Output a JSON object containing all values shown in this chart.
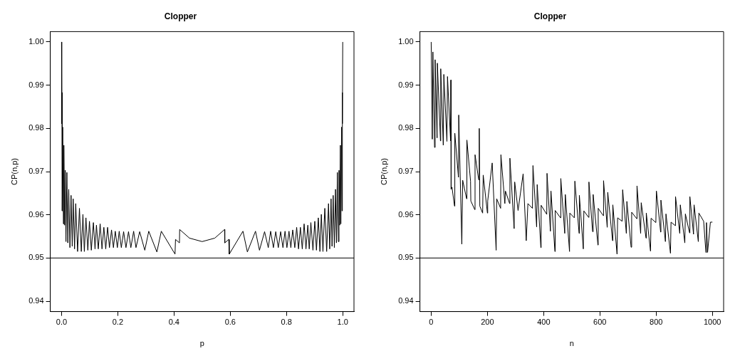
{
  "chart_data": [
    {
      "type": "line",
      "title": "Clopper",
      "xlabel": "p",
      "ylabel": "CP(n,p)",
      "xlim": [
        -0.04,
        1.04
      ],
      "ylim": [
        0.9376,
        1.0024
      ],
      "xticks": [
        {
          "value": 0,
          "label": "0.0"
        },
        {
          "value": 0.2,
          "label": "0.2"
        },
        {
          "value": 0.4,
          "label": "0.4"
        },
        {
          "value": 0.6,
          "label": "0.6"
        },
        {
          "value": 0.8,
          "label": "0.8"
        },
        {
          "value": 1,
          "label": "1.0"
        }
      ],
      "yticks": [
        0.94,
        0.95,
        0.96,
        0.97,
        0.98,
        0.99,
        {
          "value": 1,
          "label": "1.00"
        }
      ],
      "grid": false,
      "legend": false,
      "marker": "none",
      "line_style": "solid",
      "ref_lines": [
        {
          "axis": "y",
          "value": 0.95,
          "color": "#000000"
        }
      ],
      "series": [
        {
          "color": "#000000",
          "x": [
            0,
            0.0008,
            0.0017,
            0.0025,
            0.0041,
            0.0066,
            0.0083,
            0.0108,
            0.0132,
            0.0157,
            0.019,
            0.0223,
            0.0256,
            0.0298,
            0.0339,
            0.038,
            0.0414,
            0.0463,
            0.0505,
            0.0571,
            0.0637,
            0.0703,
            0.0761,
            0.0811,
            0.0868,
            0.0935,
            0.0993,
            0.1059,
            0.1133,
            0.1191,
            0.1241,
            0.1307,
            0.1373,
            0.1439,
            0.1505,
            0.1572,
            0.1638,
            0.1704,
            0.1778,
            0.1845,
            0.1911,
            0.1985,
            0.2051,
            0.2126,
            0.2208,
            0.2291,
            0.2382,
            0.2465,
            0.2564,
            0.2647,
            0.2779,
            0.2961,
            0.3102,
            0.3391,
            0.3548,
            0.4036,
            0.4053,
            0.4194,
            0.42,
            0.455,
            0.5,
            0.545,
            0.58,
            0.5806,
            0.5947,
            0.5964,
            0.6452,
            0.6609,
            0.6898,
            0.7039,
            0.7221,
            0.7353,
            0.7436,
            0.7535,
            0.7618,
            0.7709,
            0.7792,
            0.7874,
            0.7949,
            0.8015,
            0.8089,
            0.8155,
            0.8222,
            0.8296,
            0.8362,
            0.8428,
            0.8495,
            0.8561,
            0.8627,
            0.8693,
            0.8759,
            0.8809,
            0.8867,
            0.8941,
            0.9007,
            0.9065,
            0.9132,
            0.9189,
            0.9239,
            0.9297,
            0.9363,
            0.9429,
            0.9495,
            0.9537,
            0.9586,
            0.962,
            0.9661,
            0.9702,
            0.9744,
            0.9777,
            0.981,
            0.9843,
            0.9868,
            0.9892,
            0.9917,
            0.9934,
            0.9959,
            0.9975,
            0.9983,
            0.9992,
            1
          ],
          "values": [
            1.0,
            0.9811,
            0.9883,
            0.9609,
            0.9803,
            0.9579,
            0.9761,
            0.9576,
            0.9703,
            0.9538,
            0.9698,
            0.9535,
            0.9659,
            0.9524,
            0.9645,
            0.9527,
            0.9637,
            0.9521,
            0.9626,
            0.9515,
            0.9615,
            0.9515,
            0.9601,
            0.9515,
            0.9593,
            0.9518,
            0.9585,
            0.9518,
            0.9582,
            0.9521,
            0.9576,
            0.9521,
            0.9579,
            0.9521,
            0.9571,
            0.9521,
            0.9571,
            0.9524,
            0.9565,
            0.9524,
            0.9562,
            0.9524,
            0.9562,
            0.9524,
            0.9561,
            0.9524,
            0.9561,
            0.9524,
            0.9562,
            0.9524,
            0.9561,
            0.9518,
            0.9562,
            0.9514,
            0.9562,
            0.9509,
            0.9543,
            0.9535,
            0.9566,
            0.9546,
            0.9538,
            0.9546,
            0.9566,
            0.9535,
            0.9543,
            0.9509,
            0.9562,
            0.9514,
            0.9562,
            0.9518,
            0.9561,
            0.9524,
            0.9562,
            0.9524,
            0.9561,
            0.9524,
            0.9561,
            0.9524,
            0.9562,
            0.9524,
            0.9562,
            0.9524,
            0.9565,
            0.9524,
            0.9571,
            0.9521,
            0.9571,
            0.9521,
            0.9579,
            0.9521,
            0.9576,
            0.9521,
            0.9582,
            0.9518,
            0.9585,
            0.9518,
            0.9593,
            0.9515,
            0.9601,
            0.9515,
            0.9615,
            0.9515,
            0.9626,
            0.9521,
            0.9637,
            0.9527,
            0.9645,
            0.9524,
            0.9659,
            0.9535,
            0.9698,
            0.9538,
            0.9703,
            0.9576,
            0.9761,
            0.9579,
            0.9803,
            0.9609,
            0.9883,
            0.9811,
            1.0
          ]
        }
      ]
    },
    {
      "type": "line",
      "title": "Clopper",
      "xlabel": "n",
      "ylabel": "CP(n,p)",
      "xlim": [
        -40,
        1040
      ],
      "ylim": [
        0.9376,
        1.0024
      ],
      "xticks": [
        0,
        200,
        400,
        600,
        800,
        1000
      ],
      "yticks": [
        0.94,
        0.95,
        0.96,
        0.97,
        0.98,
        0.99,
        {
          "value": 1,
          "label": "1.00"
        }
      ],
      "grid": false,
      "legend": false,
      "marker": "none",
      "line_style": "solid",
      "ref_lines": [
        {
          "axis": "y",
          "value": 0.95,
          "color": "#000000"
        }
      ],
      "series": [
        {
          "color": "#000000",
          "x": [
            0,
            4,
            6,
            12,
            14,
            21,
            22,
            33,
            34,
            43,
            45,
            56,
            58,
            69,
            70,
            71,
            74,
            83,
            84,
            97,
            98,
            109,
            112,
            126,
            127,
            140,
            141,
            155,
            156,
            169,
            171,
            173,
            183,
            185,
            200,
            201,
            217,
            231,
            233,
            247,
            248,
            262,
            264,
            279,
            280,
            295,
            297,
            309,
            327,
            338,
            344,
            360,
            362,
            375,
            377,
            390,
            391,
            411,
            412,
            424,
            426,
            440,
            441,
            460,
            461,
            475,
            477,
            492,
            493,
            509,
            511,
            526,
            527,
            541,
            543,
            560,
            561,
            574,
            576,
            593,
            594,
            612,
            613,
            626,
            628,
            645,
            646,
            661,
            663,
            679,
            681,
            694,
            696,
            711,
            713,
            731,
            732,
            745,
            747,
            764,
            765,
            780,
            782,
            799,
            801,
            816,
            817,
            833,
            835,
            851,
            853,
            868,
            869,
            884,
            886,
            902,
            904,
            919,
            920,
            933,
            935,
            950,
            952,
            969,
            977,
            979,
            983,
            993,
            1000
          ],
          "values": [
            1.0,
            0.9775,
            0.9977,
            0.9756,
            0.9959,
            0.9778,
            0.9951,
            0.9771,
            0.9938,
            0.9761,
            0.9925,
            0.977,
            0.992,
            0.9771,
            0.9912,
            0.9659,
            0.9664,
            0.962,
            0.9789,
            0.9687,
            0.9831,
            0.9532,
            0.968,
            0.9637,
            0.9773,
            0.9678,
            0.9632,
            0.9612,
            0.9739,
            0.9681,
            0.98,
            0.962,
            0.9604,
            0.9692,
            0.9604,
            0.9632,
            0.972,
            0.9518,
            0.9637,
            0.9615,
            0.9739,
            0.9626,
            0.9655,
            0.9626,
            0.9731,
            0.9568,
            0.9676,
            0.961,
            0.9695,
            0.954,
            0.9626,
            0.9615,
            0.9714,
            0.9572,
            0.967,
            0.9524,
            0.9622,
            0.9601,
            0.9696,
            0.9562,
            0.9655,
            0.9515,
            0.961,
            0.9593,
            0.9684,
            0.9557,
            0.9647,
            0.9515,
            0.9604,
            0.9593,
            0.9678,
            0.9557,
            0.9645,
            0.9521,
            0.9609,
            0.9594,
            0.9676,
            0.9561,
            0.9647,
            0.953,
            0.9615,
            0.9598,
            0.9679,
            0.9571,
            0.9652,
            0.954,
            0.9623,
            0.9509,
            0.9593,
            0.9585,
            0.9658,
            0.9557,
            0.9631,
            0.9525,
            0.9606,
            0.9591,
            0.9667,
            0.9557,
            0.9628,
            0.9546,
            0.9604,
            0.9516,
            0.9592,
            0.9582,
            0.9655,
            0.956,
            0.9634,
            0.9538,
            0.9602,
            0.9511,
            0.9583,
            0.9575,
            0.9642,
            0.9557,
            0.9623,
            0.9535,
            0.9602,
            0.9558,
            0.9642,
            0.9555,
            0.9623,
            0.9538,
            0.9604,
            0.9585,
            0.9513,
            0.9582,
            0.9513,
            0.9583,
            0.9583
          ]
        }
      ]
    }
  ]
}
